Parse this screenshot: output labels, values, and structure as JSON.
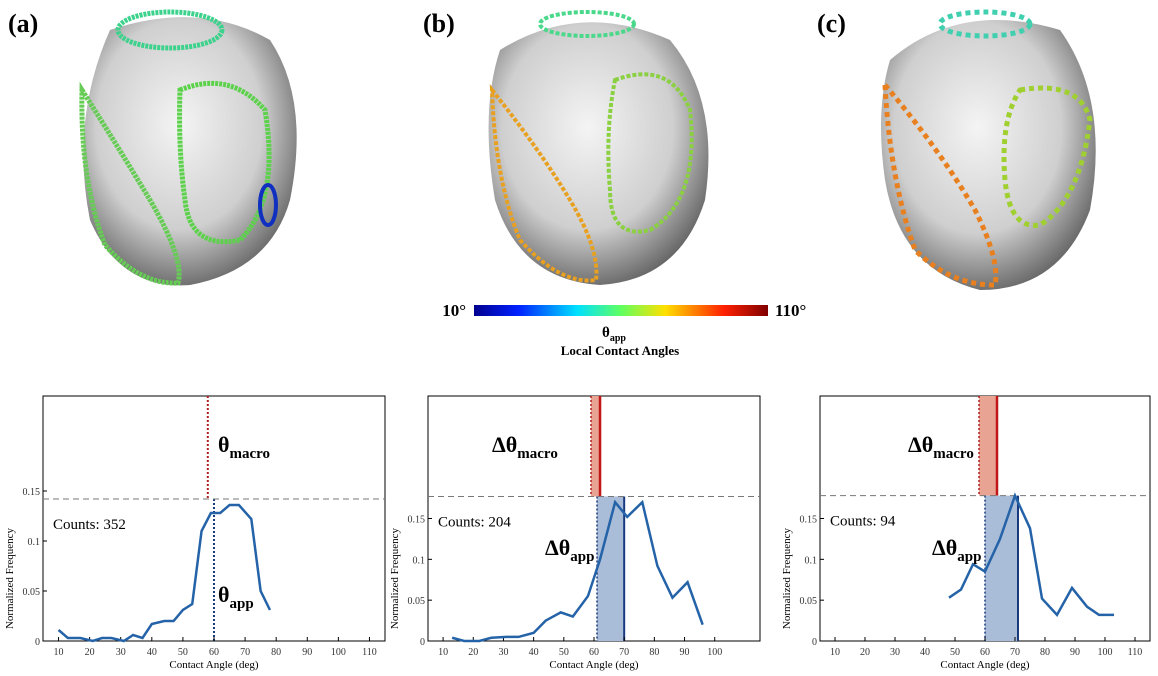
{
  "panel_labels": [
    "(a)",
    "(b)",
    "(c)"
  ],
  "colorbar": {
    "min_label": "10°",
    "max_label": "110°",
    "symbol": "θ",
    "sub": "app",
    "title": "Local Contact Angles"
  },
  "chart_data": [
    {
      "type": "line",
      "xlabel": "Contact Angle (deg)",
      "ylabel": "Normalized  Frequency",
      "counts_label": "Counts: 352",
      "x": [
        10,
        13,
        17,
        21,
        24,
        27,
        31,
        34,
        37,
        40,
        44,
        47,
        50,
        53,
        56,
        59,
        62,
        65,
        68,
        72,
        75,
        78
      ],
      "series": [
        {
          "color": "#2563a8",
          "values": [
            0.011,
            0.003,
            0.003,
            0,
            0.003,
            0.003,
            0,
            0.006,
            0.003,
            0.017,
            0.02,
            0.02,
            0.031,
            0.037,
            0.11,
            0.128,
            0.128,
            0.136,
            0.136,
            0.122,
            0.05,
            0.031
          ]
        }
      ],
      "xlim": [
        5,
        115
      ],
      "ylim": [
        0,
        0.245
      ],
      "xticks": [
        10,
        20,
        30,
        40,
        50,
        60,
        70,
        80,
        90,
        100,
        110
      ],
      "yticks": [
        0,
        0.05,
        0.1,
        0.15
      ],
      "max_line": 0.142,
      "macro_x": 58,
      "app_x": 60,
      "macro_label": {
        "symbol": "θ",
        "sub": "macro"
      },
      "app_label": {
        "symbol": "θ",
        "sub": "app"
      }
    },
    {
      "type": "line",
      "xlabel": "Contact Angle (deg)",
      "ylabel": "Normalized  Frequency",
      "counts_label": "Counts: 204",
      "x": [
        13,
        17,
        22,
        26,
        31,
        35,
        40,
        44,
        49,
        53,
        58,
        62,
        67,
        71,
        76,
        81,
        86,
        91,
        96
      ],
      "series": [
        {
          "color": "#2563a8",
          "values": [
            0.004,
            0,
            0,
            0.004,
            0.005,
            0.005,
            0.01,
            0.025,
            0.035,
            0.03,
            0.055,
            0.1,
            0.17,
            0.152,
            0.17,
            0.092,
            0.053,
            0.072,
            0.02
          ]
        }
      ],
      "xlim": [
        5,
        115
      ],
      "ylim": [
        0,
        0.3
      ],
      "xticks": [
        10,
        20,
        30,
        40,
        50,
        60,
        70,
        80,
        90,
        100
      ],
      "yticks": [
        0,
        0.05,
        0.1,
        0.15
      ],
      "max_line": 0.177,
      "macro_range": [
        59,
        62
      ],
      "app_range": [
        61,
        70
      ],
      "macro_label": {
        "symbol": "Δθ",
        "sub": "macro"
      },
      "app_label": {
        "symbol": "Δθ",
        "sub": "app"
      }
    },
    {
      "type": "line",
      "xlabel": "Contact Angle (deg)",
      "ylabel": "Normalized  Frequency",
      "counts_label": "Counts: 94",
      "x": [
        48,
        52,
        56,
        60,
        65,
        70,
        75,
        79,
        84,
        89,
        94,
        98,
        103
      ],
      "series": [
        {
          "color": "#2563a8",
          "values": [
            0.053,
            0.063,
            0.094,
            0.085,
            0.125,
            0.178,
            0.138,
            0.052,
            0.032,
            0.065,
            0.042,
            0.032,
            0.032
          ]
        }
      ],
      "xlim": [
        5,
        115
      ],
      "ylim": [
        0,
        0.3
      ],
      "xticks": [
        10,
        20,
        30,
        40,
        50,
        60,
        70,
        80,
        90,
        100,
        110
      ],
      "yticks": [
        0,
        0.05,
        0.1,
        0.15
      ],
      "max_line": 0.178,
      "macro_range": [
        58,
        64
      ],
      "app_range": [
        60,
        71
      ],
      "macro_label": {
        "symbol": "Δθ",
        "sub": "macro"
      },
      "app_label": {
        "symbol": "Δθ",
        "sub": "app"
      }
    }
  ]
}
